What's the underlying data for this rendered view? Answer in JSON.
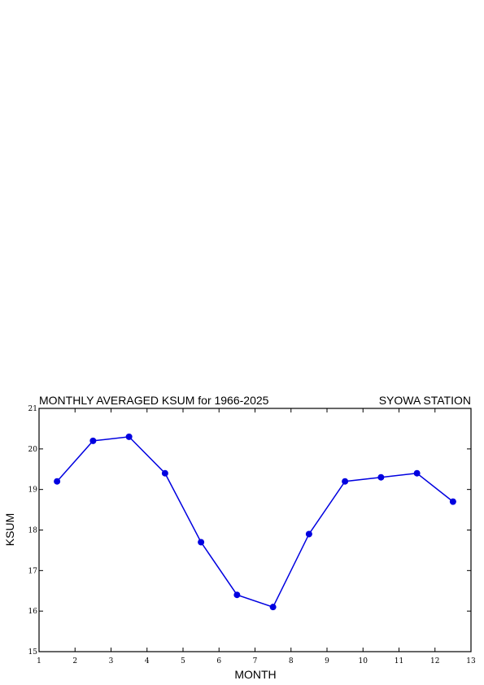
{
  "chart_data": {
    "type": "line",
    "title": "MONTHLY AVERAGED KSUM for 1966-2025",
    "subtitle": "SYOWA STATION",
    "xlabel": "MONTH",
    "ylabel": "KSUM",
    "xlim": [
      1,
      13
    ],
    "ylim": [
      15,
      21
    ],
    "xticks": [
      "1",
      "2",
      "3",
      "4",
      "5",
      "6",
      "7",
      "8",
      "9",
      "10",
      "11",
      "12",
      "13"
    ],
    "yticks": [
      "15",
      "16",
      "17",
      "18",
      "19",
      "20",
      "21"
    ],
    "grid": false,
    "x": [
      1.5,
      2.5,
      3.5,
      4.5,
      5.5,
      6.5,
      7.5,
      8.5,
      9.5,
      10.5,
      11.5,
      12.5
    ],
    "series": [
      {
        "values": [
          19.2,
          20.2,
          20.3,
          19.4,
          17.7,
          16.4,
          16.1,
          17.9,
          19.2,
          19.3,
          19.4,
          18.7
        ],
        "color": "#0000e0"
      }
    ]
  }
}
